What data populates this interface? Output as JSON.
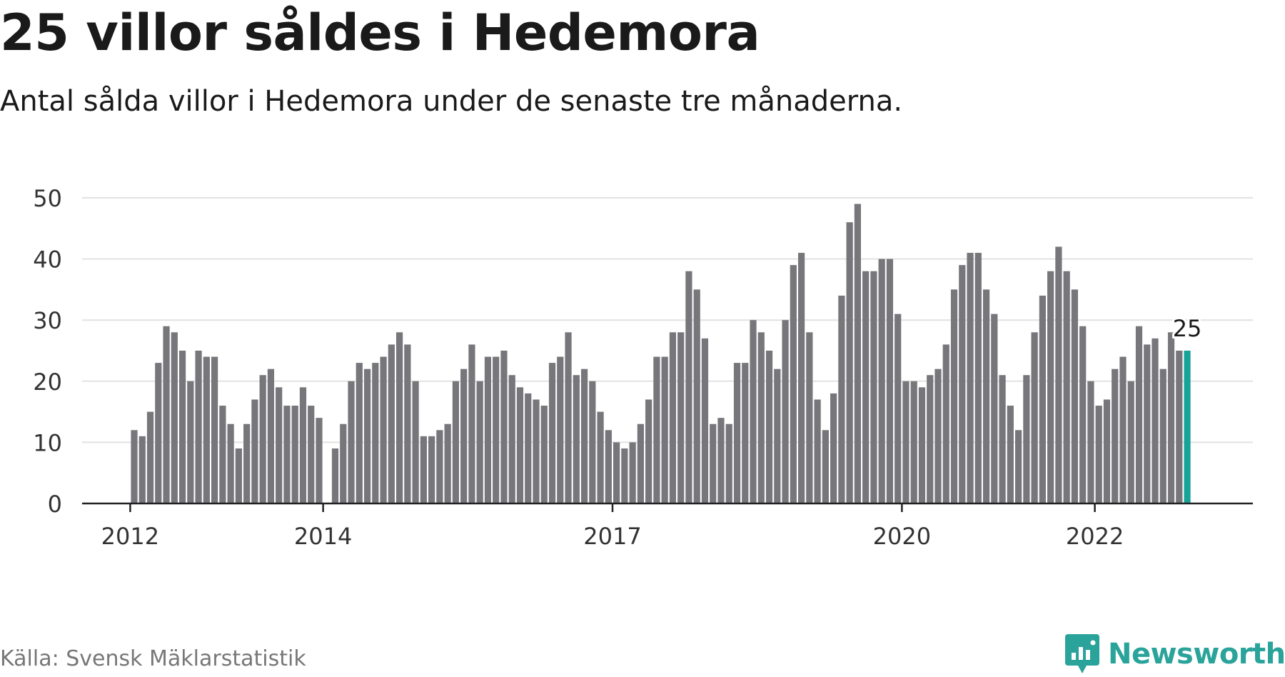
{
  "title": "25 villor såldes i Hedemora",
  "subtitle": "Antal sålda villor i Hedemora under de senaste tre månaderna.",
  "source": "Källa: Svensk Mäklarstatistik",
  "brand": "Newsworthy",
  "colors": {
    "bar": "#76767b",
    "highlight": "#17a398",
    "grid": "#e2e2e2",
    "axis": "#222222",
    "brand": "#2aa39b"
  },
  "chart_data": {
    "type": "bar",
    "x_start": "2012-01",
    "x_frequency": "monthly",
    "ylim": [
      0,
      50
    ],
    "yticks": [
      0,
      10,
      20,
      30,
      40,
      50
    ],
    "grid": true,
    "xtick_labels": [
      {
        "label": "2012",
        "index": 0
      },
      {
        "label": "2014",
        "index": 24
      },
      {
        "label": "2017",
        "index": 60
      },
      {
        "label": "2020",
        "index": 96
      },
      {
        "label": "2022",
        "index": 120
      }
    ],
    "values": [
      12,
      11,
      15,
      23,
      29,
      28,
      25,
      20,
      25,
      24,
      24,
      16,
      13,
      9,
      13,
      17,
      21,
      22,
      19,
      16,
      16,
      19,
      16,
      14,
      null,
      9,
      13,
      20,
      23,
      22,
      23,
      24,
      26,
      28,
      26,
      20,
      11,
      11,
      12,
      13,
      20,
      22,
      26,
      20,
      24,
      24,
      25,
      21,
      19,
      18,
      17,
      16,
      23,
      24,
      28,
      21,
      22,
      20,
      15,
      12,
      10,
      9,
      10,
      13,
      17,
      24,
      24,
      28,
      28,
      38,
      35,
      27,
      13,
      14,
      13,
      23,
      23,
      30,
      28,
      25,
      22,
      30,
      39,
      41,
      28,
      17,
      12,
      18,
      34,
      46,
      49,
      38,
      38,
      40,
      40,
      31,
      20,
      20,
      19,
      21,
      22,
      26,
      35,
      39,
      41,
      41,
      35,
      31,
      21,
      16,
      12,
      21,
      28,
      34,
      38,
      42,
      38,
      35,
      29,
      20,
      16,
      17,
      22,
      24,
      20,
      29,
      26,
      27,
      22,
      28,
      25,
      25
    ],
    "highlight_index": 131,
    "annotation": {
      "index": 131,
      "text": "25"
    }
  }
}
